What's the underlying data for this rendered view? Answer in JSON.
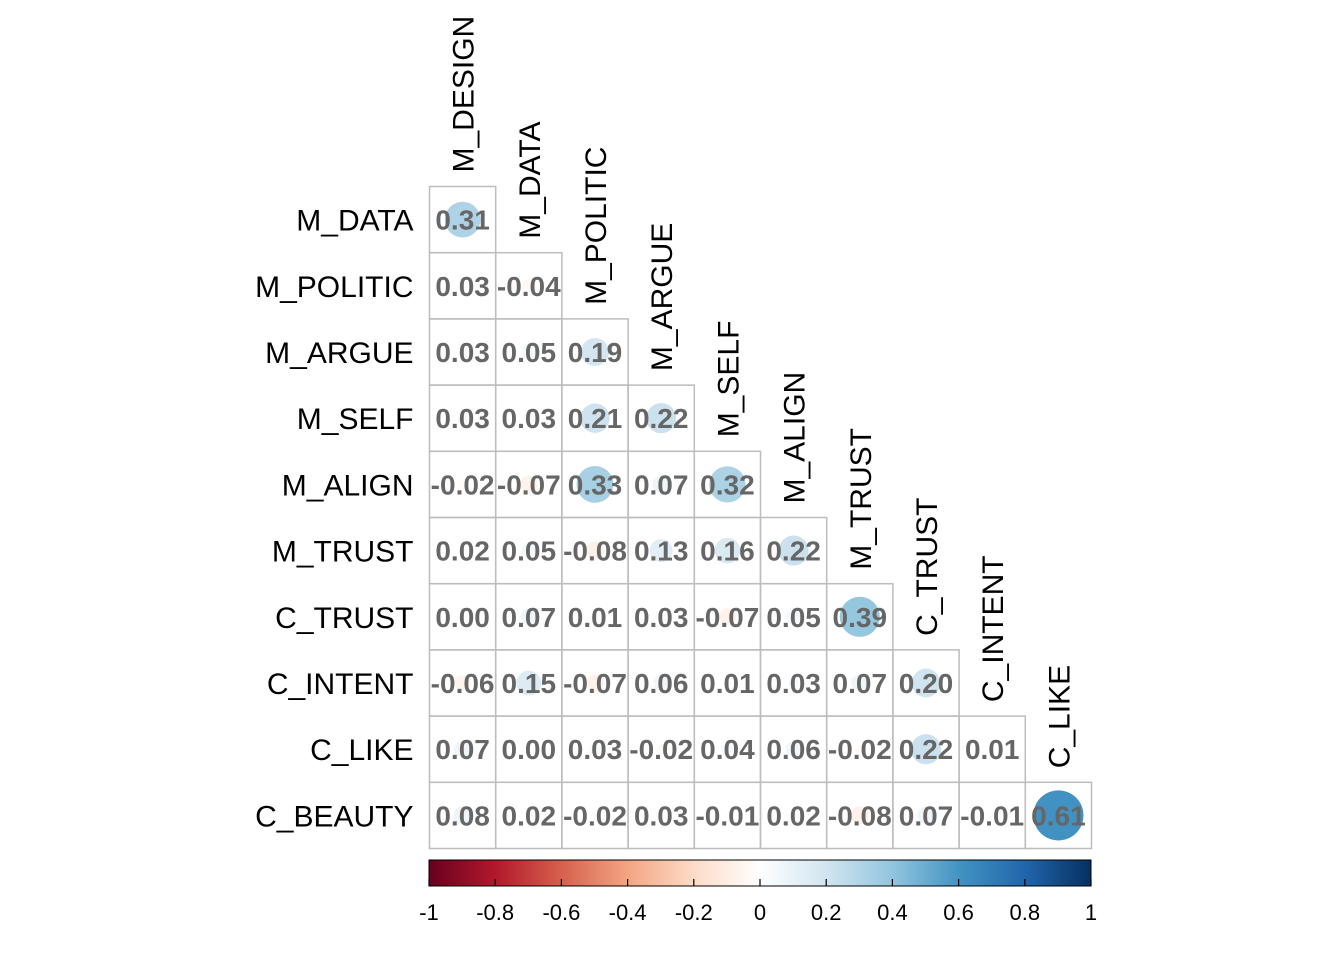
{
  "chart_data": {
    "type": "heatmap",
    "method": "circle",
    "layout": "lower-triangular",
    "row_labels": [
      "M_DATA",
      "M_POLITIC",
      "M_ARGUE",
      "M_SELF",
      "M_ALIGN",
      "M_TRUST",
      "C_TRUST",
      "C_INTENT",
      "C_LIKE",
      "C_BEAUTY"
    ],
    "col_labels": [
      "M_DESIGN",
      "M_DATA",
      "M_POLITIC",
      "M_ARGUE",
      "M_SELF",
      "M_ALIGN",
      "M_TRUST",
      "C_TRUST",
      "C_INTENT",
      "C_LIKE"
    ],
    "values": [
      [
        0.31
      ],
      [
        0.03,
        -0.04
      ],
      [
        0.03,
        0.05,
        0.19
      ],
      [
        0.03,
        0.03,
        0.21,
        0.22
      ],
      [
        -0.02,
        -0.07,
        0.33,
        0.07,
        0.32
      ],
      [
        0.02,
        0.05,
        -0.08,
        0.13,
        0.16,
        0.22
      ],
      [
        0.0,
        0.07,
        0.01,
        0.03,
        -0.07,
        0.05,
        0.39
      ],
      [
        -0.06,
        0.15,
        -0.07,
        0.06,
        0.01,
        0.03,
        0.07,
        0.2
      ],
      [
        0.07,
        0.0,
        0.03,
        -0.02,
        0.04,
        0.06,
        -0.02,
        0.22,
        0.01
      ],
      [
        0.08,
        0.02,
        -0.02,
        0.03,
        -0.01,
        0.02,
        -0.08,
        0.07,
        -0.01,
        0.61
      ]
    ],
    "value_labels": [
      [
        "0.31"
      ],
      [
        "0.03",
        "-0.04"
      ],
      [
        "0.03",
        "0.05",
        "0.19"
      ],
      [
        "0.03",
        "0.03",
        "0.21",
        "0.22"
      ],
      [
        "-0.02",
        "-0.07",
        "0.33",
        "0.07",
        "0.32"
      ],
      [
        "0.02",
        "0.05",
        "-0.08",
        "0.13",
        "0.16",
        "0.22"
      ],
      [
        "0.00",
        "0.07",
        "0.01",
        "0.03",
        "-0.07",
        "0.05",
        "0.39"
      ],
      [
        "-0.06",
        "0.15",
        "-0.07",
        "0.06",
        "0.01",
        "0.03",
        "0.07",
        "0.20"
      ],
      [
        "0.07",
        "0.00",
        "0.03",
        "-0.02",
        "0.04",
        "0.06",
        "-0.02",
        "0.22",
        "0.01"
      ],
      [
        "0.08",
        "0.02",
        "-0.02",
        "0.03",
        "-0.01",
        "0.02",
        "-0.08",
        "0.07",
        "-0.01",
        "0.61"
      ]
    ],
    "colorbar": {
      "range": [
        -1,
        1
      ],
      "ticks": [
        -1,
        -0.8,
        -0.6,
        -0.4,
        -0.2,
        0,
        0.2,
        0.4,
        0.6,
        0.8,
        1
      ],
      "tick_labels": [
        "-1",
        "-0.8",
        "-0.6",
        "-0.4",
        "-0.2",
        "0",
        "0.2",
        "0.4",
        "0.6",
        "0.8",
        "1"
      ],
      "palette": [
        "#67001F",
        "#B2182B",
        "#D6604D",
        "#F4A582",
        "#FDDBC7",
        "#FFFFFF",
        "#D1E5F0",
        "#92C5DE",
        "#4393C3",
        "#2166AC",
        "#053061"
      ]
    },
    "grid": true,
    "legend_placement": "bottom"
  }
}
